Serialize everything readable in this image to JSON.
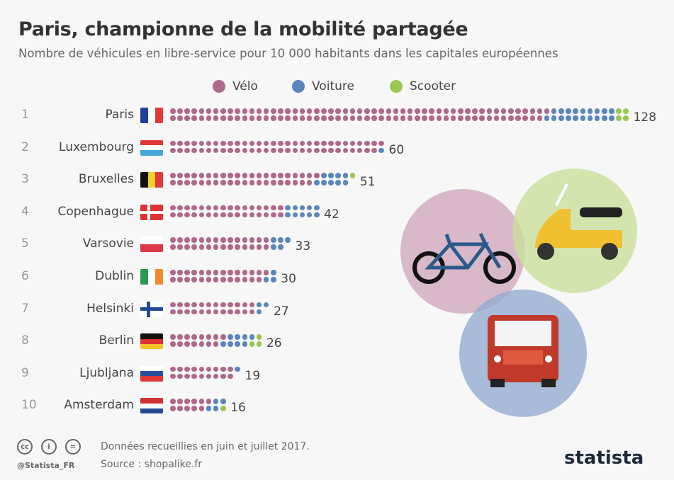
{
  "chart_data": {
    "type": "bar",
    "title": "Paris, championne de la mobilité partagée",
    "subtitle": "Nombre de véhicules en libre-service pour 10 000 habitants dans les capitales européennes",
    "legend": [
      {
        "name": "Vélo",
        "color": "#b0688a"
      },
      {
        "name": "Voiture",
        "color": "#5b86bb"
      },
      {
        "name": "Scooter",
        "color": "#9ac74f"
      }
    ],
    "rows": [
      {
        "rank": "1",
        "city": "Paris",
        "flag": "fr",
        "total": 128,
        "velo": 105,
        "voiture": 19,
        "scooter": 4
      },
      {
        "rank": "2",
        "city": "Luxembourg",
        "flag": "lu",
        "total": 60,
        "velo": 59,
        "voiture": 1,
        "scooter": 0
      },
      {
        "rank": "3",
        "city": "Bruxelles",
        "flag": "be",
        "total": 51,
        "velo": 41,
        "voiture": 9,
        "scooter": 1
      },
      {
        "rank": "4",
        "city": "Copenhague",
        "flag": "dk",
        "total": 42,
        "velo": 32,
        "voiture": 10,
        "scooter": 0
      },
      {
        "rank": "5",
        "city": "Varsovie",
        "flag": "pl",
        "total": 33,
        "velo": 28,
        "voiture": 5,
        "scooter": 0
      },
      {
        "rank": "6",
        "city": "Dublin",
        "flag": "ie",
        "total": 30,
        "velo": 27,
        "voiture": 3,
        "scooter": 0
      },
      {
        "rank": "7",
        "city": "Helsinki",
        "flag": "fi",
        "total": 27,
        "velo": 24,
        "voiture": 3,
        "scooter": 0
      },
      {
        "rank": "8",
        "city": "Berlin",
        "flag": "de",
        "total": 26,
        "velo": 15,
        "voiture": 8,
        "scooter": 3
      },
      {
        "rank": "9",
        "city": "Ljubljana",
        "flag": "si",
        "total": 19,
        "velo": 18,
        "voiture": 1,
        "scooter": 0
      },
      {
        "rank": "10",
        "city": "Amsterdam",
        "flag": "nl",
        "total": 16,
        "velo": 11,
        "voiture": 4,
        "scooter": 1
      }
    ]
  },
  "footer": {
    "note": "Données recueillies en juin et juillet 2017.",
    "source": "Source : shopalike.fr",
    "handle": "@Statista_FR",
    "brand": "statista"
  },
  "icons": [
    "cc-icon",
    "by-icon",
    "nd-icon",
    "bicycle-icon",
    "scooter-icon",
    "car-icon"
  ]
}
